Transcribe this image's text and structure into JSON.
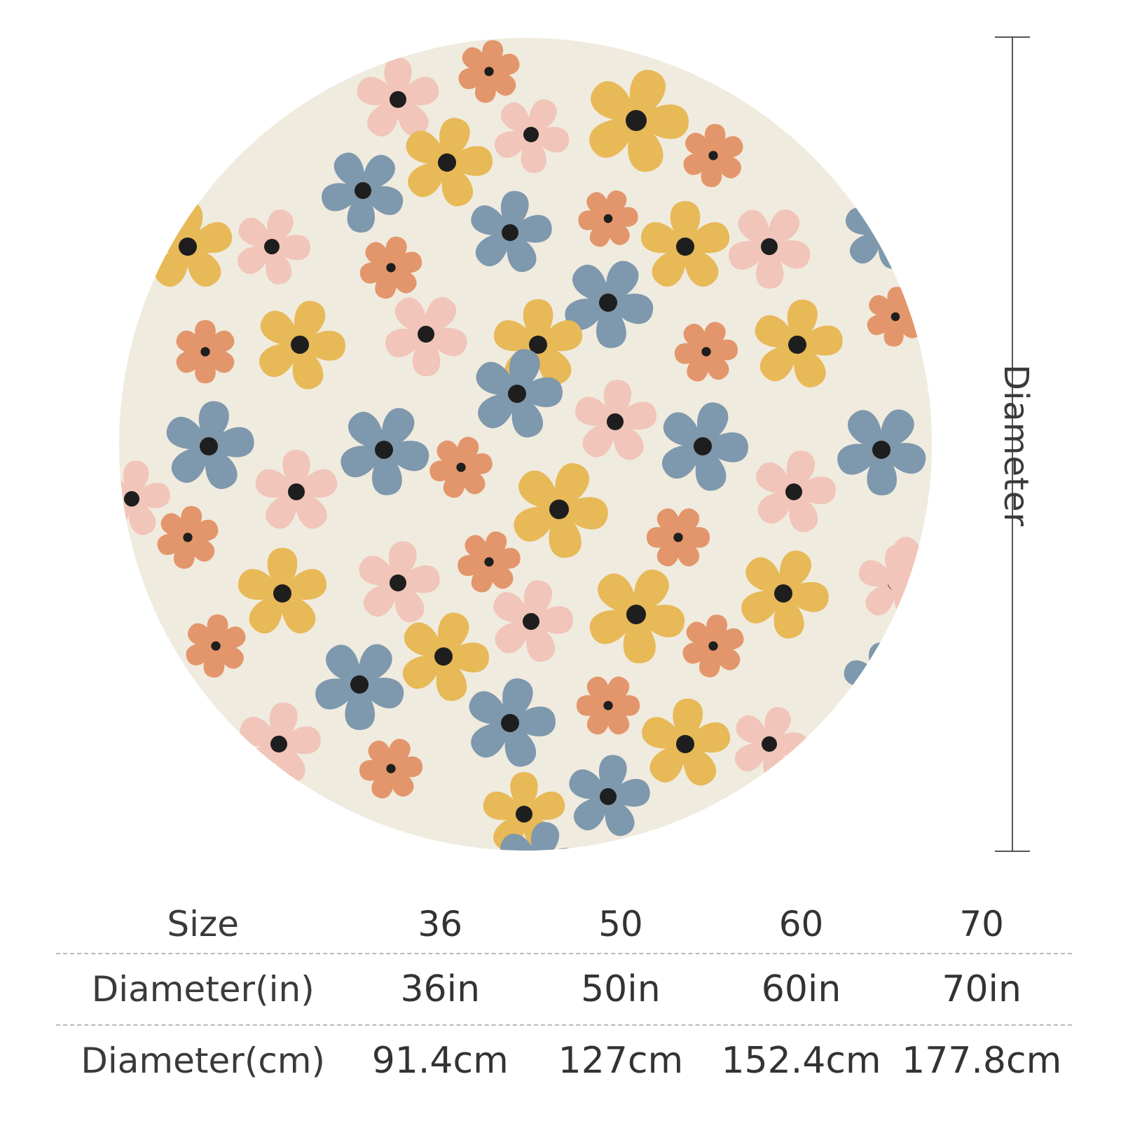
{
  "diagram": {
    "dimension_label": "Diameter"
  },
  "colors": {
    "background": "#f0ebdf",
    "yellow": "#e7b957",
    "pink": "#f1c5b9",
    "blue": "#7e98ad",
    "orange": "#e3966b",
    "center": "#1e1e1e"
  },
  "size_table": {
    "rows": [
      {
        "header": "Size",
        "cells": [
          "36",
          "50",
          "60",
          "70"
        ]
      },
      {
        "header": "Diameter(in)",
        "cells": [
          "36in",
          "50in",
          "60in",
          "70in"
        ]
      },
      {
        "header": "Diameter(cm)",
        "cells": [
          "91.4cm",
          "127cm",
          "152.4cm",
          "177.8cm"
        ]
      }
    ]
  }
}
